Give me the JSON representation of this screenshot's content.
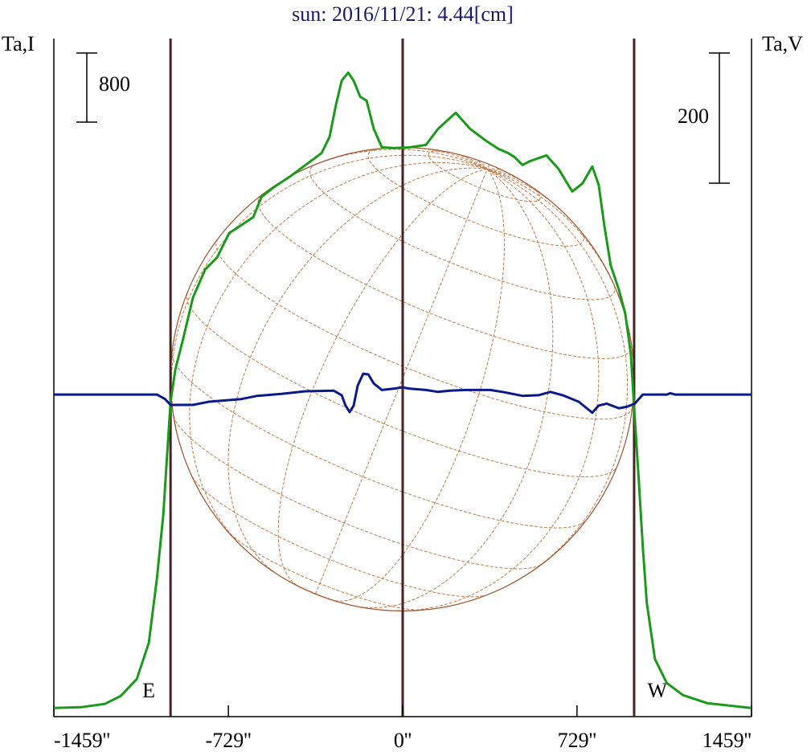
{
  "chart_data": {
    "type": "line",
    "title": "sun: 2016/11/21: 4.44[cm]",
    "y_label": "Ta,I",
    "y2_label": "Ta,V",
    "xlim": [
      -1459,
      1459
    ],
    "xticks": [
      {
        "value": -1459,
        "label": "-1459''"
      },
      {
        "value": -729,
        "label": "-729''"
      },
      {
        "value": 0,
        "label": "0''"
      },
      {
        "value": 729,
        "label": "729''"
      },
      {
        "value": 1459,
        "label": "1459''"
      }
    ],
    "ylim": [
      -100,
      7750
    ],
    "y2lim": [
      -495,
      547
    ],
    "scale_bars": [
      {
        "value": 800,
        "axis": "y"
      },
      {
        "value": 200,
        "axis": "y2"
      }
    ],
    "vlines": [
      -971,
      0,
      968
    ],
    "annotations": [
      {
        "text": "E",
        "x": -1062
      },
      {
        "text": "W",
        "x": 1065
      }
    ],
    "series": [
      {
        "color": "#1a9a1a",
        "axis": "y",
        "x": [
          -1459,
          -1347,
          -1246,
          -1179,
          -1112,
          -1062,
          -1028,
          -1001,
          -984,
          -971,
          -951,
          -917,
          -877,
          -826,
          -776,
          -726,
          -675,
          -625,
          -591,
          -541,
          -474,
          -406,
          -339,
          -306,
          -279,
          -255,
          -228,
          -205,
          -178,
          -151,
          -121,
          -87,
          -37,
          30,
          97,
          148,
          222,
          282,
          349,
          400,
          440,
          467,
          501,
          534,
          601,
          652,
          709,
          752,
          793,
          820,
          843,
          870,
          904,
          931,
          954,
          971,
          988,
          1004,
          1021,
          1055,
          1105,
          1172,
          1273,
          1458
        ],
        "values": [
          0,
          9,
          47,
          140,
          335,
          753,
          1497,
          2241,
          2985,
          3543,
          3915,
          4287,
          4752,
          5077,
          5217,
          5496,
          5589,
          5682,
          5915,
          6026,
          6147,
          6287,
          6426,
          6612,
          6984,
          7263,
          7356,
          7263,
          7077,
          7031,
          6705,
          6491,
          6482,
          6491,
          6519,
          6705,
          6891,
          6705,
          6566,
          6473,
          6426,
          6380,
          6287,
          6333,
          6398,
          6240,
          5980,
          6073,
          6268,
          6054,
          5589,
          5124,
          4845,
          4566,
          4101,
          3357,
          2613,
          1869,
          1218,
          567,
          288,
          149,
          56,
          0
        ]
      },
      {
        "color": "#0a1a8a",
        "axis": "y2",
        "x": [
          -1459,
          -1028,
          -994,
          -971,
          -877,
          -810,
          -675,
          -608,
          -507,
          -406,
          -289,
          -255,
          -239,
          -222,
          -205,
          -188,
          -165,
          -144,
          -121,
          -87,
          -37,
          -3,
          30,
          97,
          148,
          198,
          265,
          366,
          417,
          501,
          568,
          618,
          669,
          736,
          793,
          820,
          853,
          904,
          937,
          971,
          1004,
          1105,
          1119,
          1139,
          1459
        ],
        "values": [
          0,
          0,
          -7,
          -16,
          -16,
          -11,
          -7,
          -2,
          1,
          5,
          6,
          -1,
          -17,
          -27,
          -17,
          14,
          32,
          31,
          17,
          7,
          9,
          11,
          9,
          7,
          4,
          6,
          7,
          7,
          4,
          -2,
          -1,
          4,
          -1,
          -11,
          -28,
          -17,
          -14,
          -21,
          -19,
          -14,
          0,
          0,
          2,
          0,
          0
        ]
      }
    ]
  }
}
